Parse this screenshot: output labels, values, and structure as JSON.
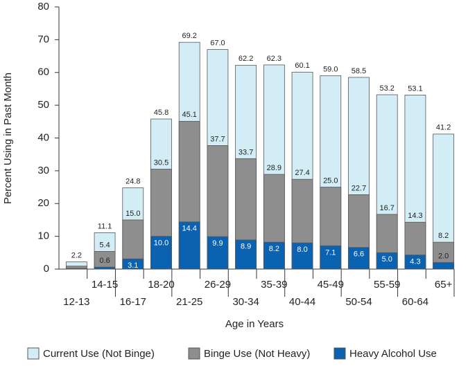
{
  "chart_data": {
    "type": "bar",
    "x_label": "Age in Years",
    "y_label": "Percent Using in Past Month",
    "categories": [
      "12-13",
      "14-15",
      "16-17",
      "18-20",
      "21-25",
      "26-29",
      "30-34",
      "35-39",
      "40-44",
      "45-49",
      "50-54",
      "55-59",
      "60-64",
      "65+"
    ],
    "series": [
      {
        "name": "Current Use (Not Binge)",
        "color": "#d3edf6",
        "values": [
          2.2,
          11.1,
          24.8,
          45.8,
          69.2,
          67.0,
          62.2,
          62.3,
          60.1,
          59.0,
          58.5,
          53.2,
          53.1,
          41.2
        ],
        "value_labels": [
          "2.2",
          "11.1",
          "24.8",
          "45.8",
          "69.2",
          "67.0",
          "62.2",
          "62.3",
          "60.1",
          "59.0",
          "58.5",
          "53.2",
          "53.1",
          "41.2"
        ]
      },
      {
        "name": "Binge Use (Not Heavy)",
        "color": "#8e8e8e",
        "values": [
          0.9,
          5.4,
          15.0,
          30.5,
          45.1,
          37.7,
          33.7,
          28.9,
          27.4,
          25.0,
          22.7,
          16.7,
          14.3,
          8.2
        ],
        "value_labels": [
          null,
          "5.4",
          "15.0",
          "30.5",
          "45.1",
          "37.7",
          "33.7",
          "28.9",
          "27.4",
          "25.0",
          "22.7",
          "16.7",
          "14.3",
          "8.2"
        ]
      },
      {
        "name": "Heavy Alcohol Use",
        "color": "#0b62b0",
        "values": [
          0.2,
          0.6,
          3.1,
          10.0,
          14.4,
          9.9,
          8.9,
          8.2,
          8.0,
          7.1,
          6.6,
          5.0,
          4.3,
          2.0
        ],
        "value_labels": [
          null,
          "0.6",
          "3.1",
          "10.0",
          "14.4",
          "9.9",
          "8.9",
          "8.2",
          "8.0",
          "7.1",
          "6.6",
          "5.0",
          "4.3",
          "2.0"
        ]
      }
    ],
    "ylim": [
      0,
      80
    ],
    "yticks": [
      0,
      10,
      20,
      30,
      40,
      50,
      60,
      70,
      80
    ],
    "legend": "bottom"
  }
}
